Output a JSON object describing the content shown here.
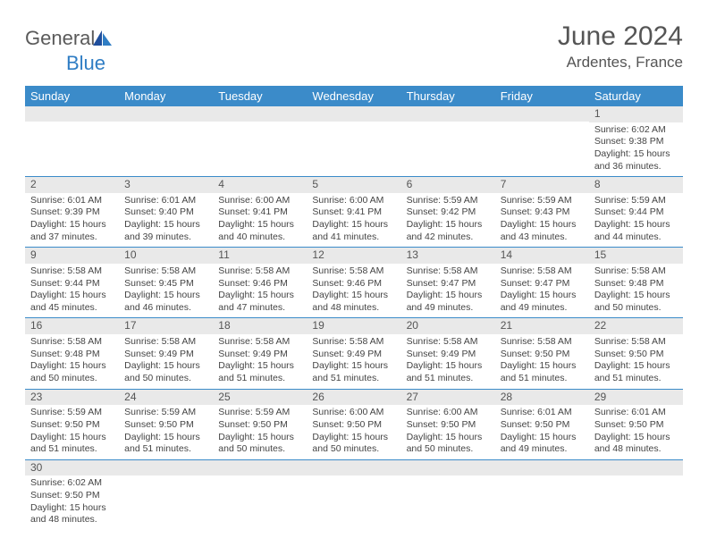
{
  "brand": {
    "general": "General",
    "blue": "Blue"
  },
  "title": "June 2024",
  "location": "Ardentes, France",
  "colors": {
    "header_bg": "#3b8bc9",
    "header_text": "#ffffff",
    "daybar_bg": "#e9e9e9",
    "border": "#3b8bc9",
    "text": "#444444",
    "title_text": "#555555",
    "logo_gray": "#5a5a5a",
    "logo_blue": "#2f7dc4"
  },
  "weekdays": [
    "Sunday",
    "Monday",
    "Tuesday",
    "Wednesday",
    "Thursday",
    "Friday",
    "Saturday"
  ],
  "grid": [
    [
      {
        "day": ""
      },
      {
        "day": ""
      },
      {
        "day": ""
      },
      {
        "day": ""
      },
      {
        "day": ""
      },
      {
        "day": ""
      },
      {
        "day": "1",
        "sunrise": "Sunrise: 6:02 AM",
        "sunset": "Sunset: 9:38 PM",
        "dl1": "Daylight: 15 hours",
        "dl2": "and 36 minutes."
      }
    ],
    [
      {
        "day": "2",
        "sunrise": "Sunrise: 6:01 AM",
        "sunset": "Sunset: 9:39 PM",
        "dl1": "Daylight: 15 hours",
        "dl2": "and 37 minutes."
      },
      {
        "day": "3",
        "sunrise": "Sunrise: 6:01 AM",
        "sunset": "Sunset: 9:40 PM",
        "dl1": "Daylight: 15 hours",
        "dl2": "and 39 minutes."
      },
      {
        "day": "4",
        "sunrise": "Sunrise: 6:00 AM",
        "sunset": "Sunset: 9:41 PM",
        "dl1": "Daylight: 15 hours",
        "dl2": "and 40 minutes."
      },
      {
        "day": "5",
        "sunrise": "Sunrise: 6:00 AM",
        "sunset": "Sunset: 9:41 PM",
        "dl1": "Daylight: 15 hours",
        "dl2": "and 41 minutes."
      },
      {
        "day": "6",
        "sunrise": "Sunrise: 5:59 AM",
        "sunset": "Sunset: 9:42 PM",
        "dl1": "Daylight: 15 hours",
        "dl2": "and 42 minutes."
      },
      {
        "day": "7",
        "sunrise": "Sunrise: 5:59 AM",
        "sunset": "Sunset: 9:43 PM",
        "dl1": "Daylight: 15 hours",
        "dl2": "and 43 minutes."
      },
      {
        "day": "8",
        "sunrise": "Sunrise: 5:59 AM",
        "sunset": "Sunset: 9:44 PM",
        "dl1": "Daylight: 15 hours",
        "dl2": "and 44 minutes."
      }
    ],
    [
      {
        "day": "9",
        "sunrise": "Sunrise: 5:58 AM",
        "sunset": "Sunset: 9:44 PM",
        "dl1": "Daylight: 15 hours",
        "dl2": "and 45 minutes."
      },
      {
        "day": "10",
        "sunrise": "Sunrise: 5:58 AM",
        "sunset": "Sunset: 9:45 PM",
        "dl1": "Daylight: 15 hours",
        "dl2": "and 46 minutes."
      },
      {
        "day": "11",
        "sunrise": "Sunrise: 5:58 AM",
        "sunset": "Sunset: 9:46 PM",
        "dl1": "Daylight: 15 hours",
        "dl2": "and 47 minutes."
      },
      {
        "day": "12",
        "sunrise": "Sunrise: 5:58 AM",
        "sunset": "Sunset: 9:46 PM",
        "dl1": "Daylight: 15 hours",
        "dl2": "and 48 minutes."
      },
      {
        "day": "13",
        "sunrise": "Sunrise: 5:58 AM",
        "sunset": "Sunset: 9:47 PM",
        "dl1": "Daylight: 15 hours",
        "dl2": "and 49 minutes."
      },
      {
        "day": "14",
        "sunrise": "Sunrise: 5:58 AM",
        "sunset": "Sunset: 9:47 PM",
        "dl1": "Daylight: 15 hours",
        "dl2": "and 49 minutes."
      },
      {
        "day": "15",
        "sunrise": "Sunrise: 5:58 AM",
        "sunset": "Sunset: 9:48 PM",
        "dl1": "Daylight: 15 hours",
        "dl2": "and 50 minutes."
      }
    ],
    [
      {
        "day": "16",
        "sunrise": "Sunrise: 5:58 AM",
        "sunset": "Sunset: 9:48 PM",
        "dl1": "Daylight: 15 hours",
        "dl2": "and 50 minutes."
      },
      {
        "day": "17",
        "sunrise": "Sunrise: 5:58 AM",
        "sunset": "Sunset: 9:49 PM",
        "dl1": "Daylight: 15 hours",
        "dl2": "and 50 minutes."
      },
      {
        "day": "18",
        "sunrise": "Sunrise: 5:58 AM",
        "sunset": "Sunset: 9:49 PM",
        "dl1": "Daylight: 15 hours",
        "dl2": "and 51 minutes."
      },
      {
        "day": "19",
        "sunrise": "Sunrise: 5:58 AM",
        "sunset": "Sunset: 9:49 PM",
        "dl1": "Daylight: 15 hours",
        "dl2": "and 51 minutes."
      },
      {
        "day": "20",
        "sunrise": "Sunrise: 5:58 AM",
        "sunset": "Sunset: 9:49 PM",
        "dl1": "Daylight: 15 hours",
        "dl2": "and 51 minutes."
      },
      {
        "day": "21",
        "sunrise": "Sunrise: 5:58 AM",
        "sunset": "Sunset: 9:50 PM",
        "dl1": "Daylight: 15 hours",
        "dl2": "and 51 minutes."
      },
      {
        "day": "22",
        "sunrise": "Sunrise: 5:58 AM",
        "sunset": "Sunset: 9:50 PM",
        "dl1": "Daylight: 15 hours",
        "dl2": "and 51 minutes."
      }
    ],
    [
      {
        "day": "23",
        "sunrise": "Sunrise: 5:59 AM",
        "sunset": "Sunset: 9:50 PM",
        "dl1": "Daylight: 15 hours",
        "dl2": "and 51 minutes."
      },
      {
        "day": "24",
        "sunrise": "Sunrise: 5:59 AM",
        "sunset": "Sunset: 9:50 PM",
        "dl1": "Daylight: 15 hours",
        "dl2": "and 51 minutes."
      },
      {
        "day": "25",
        "sunrise": "Sunrise: 5:59 AM",
        "sunset": "Sunset: 9:50 PM",
        "dl1": "Daylight: 15 hours",
        "dl2": "and 50 minutes."
      },
      {
        "day": "26",
        "sunrise": "Sunrise: 6:00 AM",
        "sunset": "Sunset: 9:50 PM",
        "dl1": "Daylight: 15 hours",
        "dl2": "and 50 minutes."
      },
      {
        "day": "27",
        "sunrise": "Sunrise: 6:00 AM",
        "sunset": "Sunset: 9:50 PM",
        "dl1": "Daylight: 15 hours",
        "dl2": "and 50 minutes."
      },
      {
        "day": "28",
        "sunrise": "Sunrise: 6:01 AM",
        "sunset": "Sunset: 9:50 PM",
        "dl1": "Daylight: 15 hours",
        "dl2": "and 49 minutes."
      },
      {
        "day": "29",
        "sunrise": "Sunrise: 6:01 AM",
        "sunset": "Sunset: 9:50 PM",
        "dl1": "Daylight: 15 hours",
        "dl2": "and 48 minutes."
      }
    ],
    [
      {
        "day": "30",
        "sunrise": "Sunrise: 6:02 AM",
        "sunset": "Sunset: 9:50 PM",
        "dl1": "Daylight: 15 hours",
        "dl2": "and 48 minutes."
      },
      {
        "day": ""
      },
      {
        "day": ""
      },
      {
        "day": ""
      },
      {
        "day": ""
      },
      {
        "day": ""
      },
      {
        "day": ""
      }
    ]
  ]
}
